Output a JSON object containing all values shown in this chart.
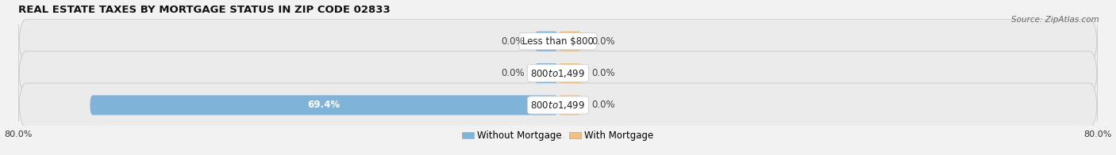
{
  "title": "REAL ESTATE TAXES BY MORTGAGE STATUS IN ZIP CODE 02833",
  "source": "Source: ZipAtlas.com",
  "rows": [
    {
      "label": "Less than $800",
      "without_mortgage": 0.0,
      "with_mortgage": 0.0
    },
    {
      "label": "$800 to $1,499",
      "without_mortgage": 0.0,
      "with_mortgage": 0.0
    },
    {
      "label": "$800 to $1,499",
      "without_mortgage": 69.4,
      "with_mortgage": 0.0
    }
  ],
  "xlim_left": -80,
  "xlim_right": 80,
  "left_tick_label": "80.0%",
  "right_tick_label": "80.0%",
  "color_without": "#7fb3d8",
  "color_with": "#f0c080",
  "color_row_bg": "#ebebeb",
  "color_row_edge": "#d0d0d0",
  "bar_height": 0.62,
  "min_bar_display": 3.5,
  "title_fontsize": 9.5,
  "tick_fontsize": 8,
  "label_fontsize": 8.5,
  "source_fontsize": 7.5,
  "legend_without": "Without Mortgage",
  "legend_with": "With Mortgage",
  "fig_bg": "#f2f2f2"
}
